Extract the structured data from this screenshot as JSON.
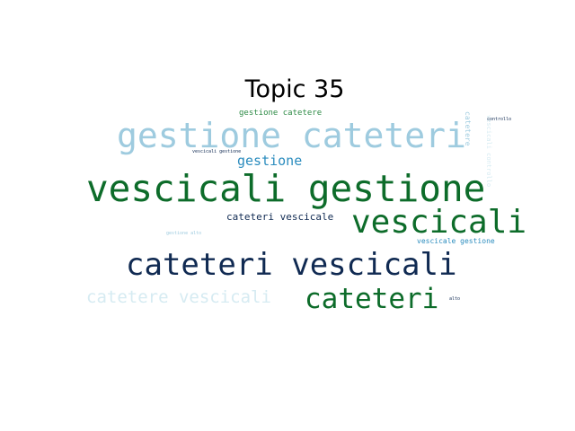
{
  "title": "Topic 35",
  "colors": {
    "dark_green": "#0d6c2a",
    "navy": "#102a52",
    "light_blue": "#9ecbdf",
    "mid_blue": "#2b8cbe",
    "pale_blue": "#d6ebf2",
    "green": "#2e8b46"
  },
  "words": [
    "gestione cateteri",
    "vescicali gestione",
    "vescicali",
    "cateteri vescicali",
    "cateteri",
    "catetere vescicali",
    "gestione",
    "cateteri vescicale",
    "gestione catetere",
    "vescicale gestione",
    "catetere",
    "vescicali controllo",
    "controllo",
    "vescicali gestione",
    "gestione alto",
    "alto"
  ]
}
